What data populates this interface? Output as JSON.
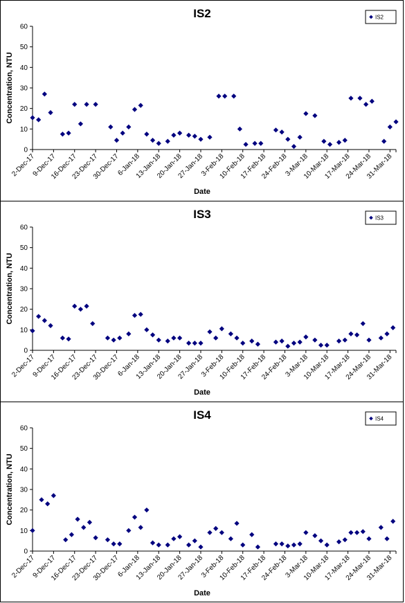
{
  "chart_data": [
    {
      "type": "scatter",
      "title": "IS2",
      "xlabel": "Date",
      "ylabel": "Concentration, NTU",
      "ylim": [
        0,
        60
      ],
      "yticks": [
        0,
        10,
        20,
        30,
        40,
        50,
        60
      ],
      "xlim": [
        "2017-12-02",
        "2018-04-02"
      ],
      "xtick_labels": [
        "2-Dec-17",
        "9-Dec-17",
        "16-Dec-17",
        "23-Dec-17",
        "30-Dec-17",
        "6-Jan-18",
        "13-Jan-18",
        "20-Jan-18",
        "27-Jan-18",
        "3-Feb-18",
        "10-Feb-18",
        "17-Feb-18",
        "24-Feb-18",
        "3-Mar-18",
        "10-Mar-18",
        "17-Mar-18",
        "24-Mar-18",
        "31-Mar-18"
      ],
      "legend_position": "top-right",
      "marker_color": "#00007F",
      "series": [
        {
          "name": "IS2",
          "x": [
            "2017-12-02",
            "2017-12-04",
            "2017-12-06",
            "2017-12-08",
            "2017-12-12",
            "2017-12-14",
            "2017-12-16",
            "2017-12-18",
            "2017-12-20",
            "2017-12-23",
            "2017-12-28",
            "2017-12-30",
            "2018-01-01",
            "2018-01-03",
            "2018-01-05",
            "2018-01-07",
            "2018-01-09",
            "2018-01-11",
            "2018-01-13",
            "2018-01-16",
            "2018-01-18",
            "2018-01-20",
            "2018-01-23",
            "2018-01-25",
            "2018-01-27",
            "2018-01-30",
            "2018-02-02",
            "2018-02-04",
            "2018-02-07",
            "2018-02-09",
            "2018-02-11",
            "2018-02-14",
            "2018-02-16",
            "2018-02-21",
            "2018-02-23",
            "2018-02-25",
            "2018-02-27",
            "2018-03-01",
            "2018-03-03",
            "2018-03-06",
            "2018-03-09",
            "2018-03-11",
            "2018-03-14",
            "2018-03-16",
            "2018-03-18",
            "2018-03-21",
            "2018-03-23",
            "2018-03-25",
            "2018-03-29",
            "2018-03-31",
            "2018-04-02"
          ],
          "y": [
            15.5,
            14.5,
            27,
            18,
            7.5,
            8,
            22,
            12.5,
            22,
            22,
            11,
            4.5,
            8,
            11,
            19.5,
            21.5,
            7.5,
            4.5,
            3,
            4,
            7,
            8,
            7,
            6.5,
            5,
            6,
            26,
            26,
            26,
            10,
            2.5,
            3,
            3,
            9.5,
            8.5,
            5,
            1.5,
            6,
            17.5,
            16.5,
            4,
            2.5,
            3.5,
            4.5,
            25,
            25,
            22,
            23.5,
            4,
            11,
            13.5
          ]
        }
      ]
    },
    {
      "type": "scatter",
      "title": "IS3",
      "xlabel": "Date",
      "ylabel": "Concentration, NTU",
      "ylim": [
        0,
        60
      ],
      "yticks": [
        0,
        10,
        20,
        30,
        40,
        50,
        60
      ],
      "xlim": [
        "2017-12-02",
        "2018-04-02"
      ],
      "xtick_labels": [
        "2-Dec-17",
        "9-Dec-17",
        "16-Dec-17",
        "23-Dec-17",
        "30-Dec-17",
        "6-Jan-18",
        "13-Jan-18",
        "20-Jan-18",
        "27-Jan-18",
        "3-Feb-18",
        "10-Feb-18",
        "17-Feb-18",
        "24-Feb-18",
        "3-Mar-18",
        "10-Mar-18",
        "17-Mar-18",
        "24-Mar-18",
        "31-Mar-18"
      ],
      "legend_position": "top-right",
      "marker_color": "#00007F",
      "series": [
        {
          "name": "IS3",
          "x": [
            "2017-12-02",
            "2017-12-04",
            "2017-12-06",
            "2017-12-08",
            "2017-12-12",
            "2017-12-14",
            "2017-12-16",
            "2017-12-18",
            "2017-12-20",
            "2017-12-22",
            "2017-12-27",
            "2017-12-29",
            "2017-12-31",
            "2018-01-03",
            "2018-01-05",
            "2018-01-07",
            "2018-01-09",
            "2018-01-11",
            "2018-01-13",
            "2018-01-16",
            "2018-01-18",
            "2018-01-20",
            "2018-01-23",
            "2018-01-25",
            "2018-01-27",
            "2018-01-30",
            "2018-02-01",
            "2018-02-03",
            "2018-02-06",
            "2018-02-08",
            "2018-02-10",
            "2018-02-13",
            "2018-02-15",
            "2018-02-21",
            "2018-02-23",
            "2018-02-25",
            "2018-02-27",
            "2018-03-01",
            "2018-03-03",
            "2018-03-06",
            "2018-03-08",
            "2018-03-10",
            "2018-03-14",
            "2018-03-16",
            "2018-03-18",
            "2018-03-20",
            "2018-03-22",
            "2018-03-24",
            "2018-03-28",
            "2018-03-30",
            "2018-04-01"
          ],
          "y": [
            9.5,
            16.5,
            14.5,
            12,
            6,
            5.5,
            21.5,
            20,
            21.5,
            13,
            6,
            5,
            6,
            8,
            17,
            17.5,
            10,
            7.5,
            5,
            4.5,
            6,
            6,
            3.5,
            3.5,
            3.5,
            9,
            6,
            10.5,
            8,
            6,
            3.5,
            4.5,
            3,
            4,
            4.5,
            2,
            3.5,
            4,
            6.5,
            5,
            2.5,
            2.5,
            4.5,
            5,
            8,
            7.5,
            13,
            5,
            6,
            8,
            11
          ]
        }
      ]
    },
    {
      "type": "scatter",
      "title": "IS4",
      "xlabel": "Date",
      "ylabel": "Concentration, NTU",
      "ylim": [
        0,
        60
      ],
      "yticks": [
        0,
        10,
        20,
        30,
        40,
        50,
        60
      ],
      "xlim": [
        "2017-12-02",
        "2018-04-02"
      ],
      "xtick_labels": [
        "2-Dec-17",
        "9-Dec-17",
        "16-Dec-17",
        "23-Dec-17",
        "30-Dec-17",
        "6-Jan-18",
        "13-Jan-18",
        "20-Jan-18",
        "27-Jan-18",
        "3-Feb-18",
        "10-Feb-18",
        "17-Feb-18",
        "24-Feb-18",
        "3-Mar-18",
        "10-Mar-18",
        "17-Mar-18",
        "24-Mar-18",
        "31-Mar-18"
      ],
      "legend_position": "top-right",
      "marker_color": "#00007F",
      "series": [
        {
          "name": "IS4",
          "x": [
            "2017-12-02",
            "2017-12-05",
            "2017-12-07",
            "2017-12-09",
            "2017-12-13",
            "2017-12-15",
            "2017-12-17",
            "2017-12-19",
            "2017-12-21",
            "2017-12-23",
            "2017-12-27",
            "2017-12-29",
            "2017-12-31",
            "2018-01-03",
            "2018-01-05",
            "2018-01-07",
            "2018-01-09",
            "2018-01-11",
            "2018-01-13",
            "2018-01-16",
            "2018-01-18",
            "2018-01-20",
            "2018-01-23",
            "2018-01-25",
            "2018-01-27",
            "2018-01-30",
            "2018-02-01",
            "2018-02-03",
            "2018-02-06",
            "2018-02-08",
            "2018-02-10",
            "2018-02-13",
            "2018-02-15",
            "2018-02-21",
            "2018-02-23",
            "2018-02-25",
            "2018-02-27",
            "2018-03-01",
            "2018-03-03",
            "2018-03-06",
            "2018-03-08",
            "2018-03-10",
            "2018-03-14",
            "2018-03-16",
            "2018-03-18",
            "2018-03-20",
            "2018-03-22",
            "2018-03-24",
            "2018-03-28",
            "2018-03-30",
            "2018-04-01"
          ],
          "y": [
            10,
            25,
            23,
            27,
            5.5,
            8,
            15.5,
            11.5,
            14,
            6.5,
            5.5,
            3.5,
            3.5,
            10,
            16.5,
            11.5,
            20,
            4,
            3,
            3,
            6,
            7,
            3,
            5,
            2,
            9,
            11,
            9,
            6,
            13.5,
            3,
            8,
            2,
            3.5,
            3.5,
            2.5,
            3,
            3.5,
            9,
            7.5,
            5,
            3,
            4.5,
            5.5,
            9,
            9,
            9.5,
            6,
            11.5,
            6,
            14.5
          ]
        }
      ]
    }
  ]
}
